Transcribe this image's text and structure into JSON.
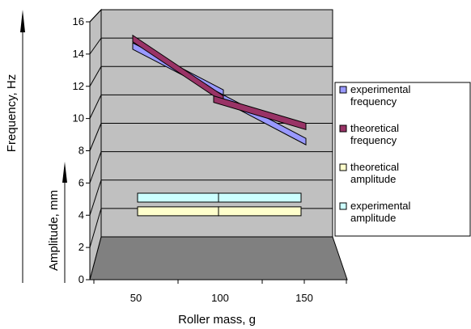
{
  "chart_data": {
    "type": "line",
    "style": "3d",
    "x": [
      50,
      100,
      150
    ],
    "xticks": [
      "50",
      "100",
      "150"
    ],
    "xlabel": "Roller mass, g",
    "ylabel_primary": "Frequency, Hz",
    "ylabel_secondary": "Amplitude, mm",
    "ylim": [
      0,
      16
    ],
    "yticks": [
      "0",
      "2",
      "4",
      "6",
      "8",
      "10",
      "12",
      "14",
      "16"
    ],
    "grid": true,
    "legend_position": "right",
    "series": [
      {
        "name": "experimental frequency",
        "values": [
          14.0,
          10.9,
          7.7
        ],
        "color": "#9999ff",
        "style": "line"
      },
      {
        "name": "theoretical frequency",
        "values": [
          14.5,
          10.5,
          8.7
        ],
        "color": "#993366",
        "style": "line"
      },
      {
        "name": "theoretical amplitude",
        "values": [
          3.1,
          3.1,
          3.1
        ],
        "color": "#ffffcc",
        "style": "band"
      },
      {
        "name": "experimental amplitude",
        "values": [
          4.0,
          4.0,
          4.0
        ],
        "color": "#ccffff",
        "style": "band"
      }
    ],
    "legend": [
      {
        "line1": "experimental",
        "line2": "frequency",
        "color": "#9999ff"
      },
      {
        "line1": "theoretical",
        "line2": "frequency",
        "color": "#993366"
      },
      {
        "line1": "theoretical",
        "line2": "amplitude",
        "color": "#ffffcc"
      },
      {
        "line1": "experimental",
        "line2": "amplitude",
        "color": "#ccffff"
      }
    ],
    "colors": {
      "wall": "#c0c0c0",
      "floor": "#808080",
      "grid": "#000000"
    }
  }
}
